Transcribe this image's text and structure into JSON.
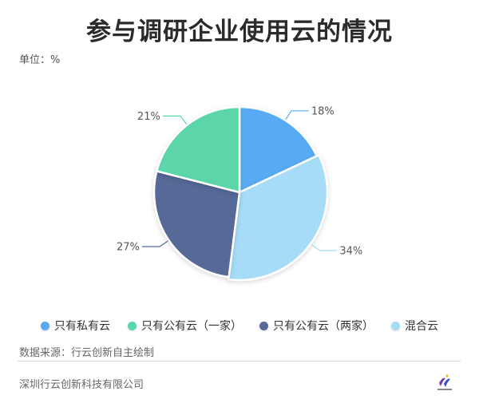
{
  "chart_data": {
    "type": "pie",
    "title": "参与调研企业使用云的情况",
    "unit_label": "单位：%",
    "series": [
      {
        "name": "只有私有云",
        "value": 18,
        "label": "18%",
        "color": "#58abf2"
      },
      {
        "name": "只有公有云（一家）",
        "value": 21,
        "label": "21%",
        "color": "#5bd6a8"
      },
      {
        "name": "只有公有云（两家）",
        "value": 27,
        "label": "27%",
        "color": "#566997"
      },
      {
        "name": "混合云",
        "value": 34,
        "label": "34%",
        "color": "#a6dcf8"
      }
    ],
    "draw_order_clockwise_from_top": [
      "只有私有云",
      "混合云",
      "只有公有云（两家）",
      "只有公有云（一家）"
    ],
    "legend_position": "bottom"
  },
  "footer": {
    "source": "数据来源：行云创新自主绘制",
    "company": "深圳行云创新科技有限公司",
    "logo_text": "行云创新"
  }
}
